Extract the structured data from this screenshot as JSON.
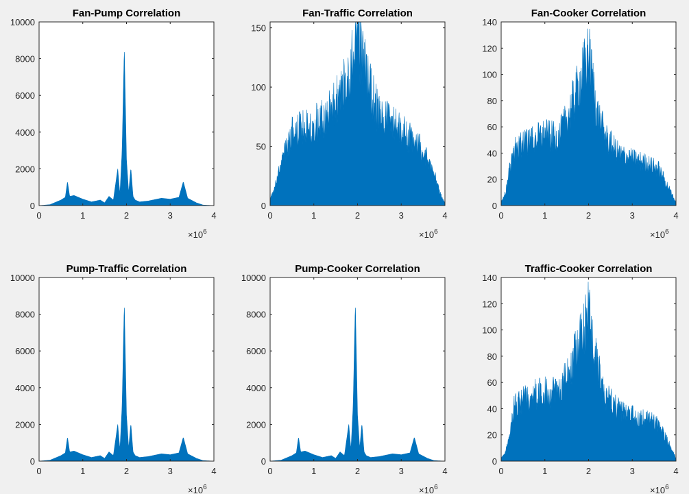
{
  "figure": {
    "background": "#f0f0f0",
    "series_color": "#0072bd"
  },
  "chart_data": [
    {
      "type": "area",
      "title": "Fan-Pump Correlation",
      "xlim": [
        0,
        4000000
      ],
      "ylim": [
        0,
        10000
      ],
      "xticks": [
        "0",
        "1",
        "2",
        "3",
        "4"
      ],
      "yticks": [
        "0",
        "2000",
        "4000",
        "6000",
        "8000",
        "10000"
      ],
      "x_exponent": "6",
      "profile": "sinc",
      "x": [
        0,
        250000,
        400000,
        500000,
        600000,
        650000,
        700000,
        800000,
        1000000,
        1200000,
        1400000,
        1500000,
        1600000,
        1700000,
        1800000,
        1850000,
        1900000,
        1950000,
        2000000,
        2050000,
        2100000,
        2150000,
        2200000,
        2300000,
        2500000,
        2800000,
        3000000,
        3200000,
        3300000,
        3400000,
        3600000,
        3750000,
        4000000
      ],
      "y": [
        0,
        50,
        200,
        300,
        450,
        1300,
        500,
        550,
        350,
        200,
        300,
        150,
        500,
        300,
        2000,
        600,
        3000,
        8600,
        2500,
        700,
        2050,
        500,
        300,
        200,
        250,
        400,
        350,
        450,
        1300,
        400,
        150,
        30,
        0
      ]
    },
    {
      "type": "area",
      "title": "Fan-Traffic Correlation",
      "xlim": [
        0,
        4000000
      ],
      "ylim": [
        0,
        155
      ],
      "xticks": [
        "0",
        "1",
        "2",
        "3",
        "4"
      ],
      "yticks": [
        "0",
        "50",
        "100",
        "150"
      ],
      "x_exponent": "6",
      "profile": "noise",
      "x": [
        0,
        100000,
        300000,
        500000,
        700000,
        1000000,
        1300000,
        1500000,
        1700000,
        1900000,
        2000000,
        2100000,
        2300000,
        2500000,
        2800000,
        3100000,
        3400000,
        3700000,
        3900000,
        4000000
      ],
      "y": [
        5,
        15,
        45,
        65,
        70,
        75,
        80,
        95,
        110,
        135,
        155,
        135,
        105,
        80,
        75,
        65,
        55,
        35,
        10,
        2
      ]
    },
    {
      "type": "area",
      "title": "Fan-Cooker Correlation",
      "xlim": [
        0,
        4000000
      ],
      "ylim": [
        0,
        140
      ],
      "xticks": [
        "0",
        "1",
        "2",
        "3",
        "4"
      ],
      "yticks": [
        "0",
        "20",
        "40",
        "60",
        "80",
        "100",
        "120",
        "140"
      ],
      "x_exponent": "6",
      "profile": "noise",
      "x": [
        0,
        100000,
        200000,
        300000,
        500000,
        800000,
        1000000,
        1300000,
        1500000,
        1700000,
        1900000,
        2000000,
        2200000,
        2400000,
        2700000,
        3000000,
        3300000,
        3600000,
        3900000,
        4000000
      ],
      "y": [
        3,
        10,
        30,
        45,
        50,
        55,
        58,
        55,
        70,
        90,
        112,
        125,
        75,
        55,
        42,
        38,
        35,
        30,
        10,
        2
      ]
    },
    {
      "type": "area",
      "title": "Pump-Traffic Correlation",
      "xlim": [
        0,
        4000000
      ],
      "ylim": [
        0,
        10000
      ],
      "xticks": [
        "0",
        "1",
        "2",
        "3",
        "4"
      ],
      "yticks": [
        "0",
        "2000",
        "4000",
        "6000",
        "8000",
        "10000"
      ],
      "x_exponent": "6",
      "profile": "sinc",
      "x": [
        0,
        250000,
        400000,
        500000,
        600000,
        650000,
        700000,
        800000,
        1000000,
        1200000,
        1400000,
        1500000,
        1600000,
        1700000,
        1800000,
        1850000,
        1900000,
        1950000,
        2000000,
        2050000,
        2100000,
        2150000,
        2200000,
        2300000,
        2500000,
        2800000,
        3000000,
        3200000,
        3300000,
        3400000,
        3600000,
        3750000,
        4000000
      ],
      "y": [
        0,
        50,
        200,
        300,
        450,
        1300,
        500,
        550,
        350,
        200,
        300,
        150,
        500,
        300,
        2000,
        600,
        3000,
        8600,
        2500,
        700,
        2050,
        500,
        300,
        200,
        250,
        400,
        350,
        450,
        1300,
        400,
        150,
        30,
        0
      ]
    },
    {
      "type": "area",
      "title": "Pump-Cooker Correlation",
      "xlim": [
        0,
        4000000
      ],
      "ylim": [
        0,
        10000
      ],
      "xticks": [
        "0",
        "1",
        "2",
        "3",
        "4"
      ],
      "yticks": [
        "0",
        "2000",
        "4000",
        "6000",
        "8000",
        "10000"
      ],
      "x_exponent": "6",
      "profile": "sinc",
      "x": [
        0,
        250000,
        400000,
        500000,
        600000,
        650000,
        700000,
        800000,
        1000000,
        1200000,
        1400000,
        1500000,
        1600000,
        1700000,
        1800000,
        1850000,
        1900000,
        1950000,
        2000000,
        2050000,
        2100000,
        2150000,
        2200000,
        2300000,
        2500000,
        2800000,
        3000000,
        3200000,
        3300000,
        3400000,
        3600000,
        3750000,
        4000000
      ],
      "y": [
        0,
        50,
        200,
        300,
        450,
        1300,
        500,
        550,
        350,
        200,
        300,
        150,
        500,
        300,
        2000,
        600,
        3000,
        8600,
        2500,
        700,
        2050,
        500,
        300,
        200,
        250,
        400,
        350,
        450,
        1300,
        400,
        150,
        30,
        0
      ]
    },
    {
      "type": "area",
      "title": "Traffic-Cooker Correlation",
      "xlim": [
        0,
        4000000
      ],
      "ylim": [
        0,
        140
      ],
      "xticks": [
        "0",
        "1",
        "2",
        "3",
        "4"
      ],
      "yticks": [
        "0",
        "20",
        "40",
        "60",
        "80",
        "100",
        "120",
        "140"
      ],
      "x_exponent": "6",
      "profile": "noise",
      "x": [
        0,
        100000,
        200000,
        300000,
        500000,
        800000,
        1000000,
        1300000,
        1500000,
        1700000,
        1900000,
        2000000,
        2200000,
        2400000,
        2700000,
        3000000,
        3300000,
        3600000,
        3900000,
        4000000
      ],
      "y": [
        2,
        8,
        20,
        45,
        50,
        55,
        58,
        55,
        70,
        90,
        112,
        120,
        75,
        55,
        42,
        38,
        35,
        30,
        10,
        2
      ]
    }
  ]
}
